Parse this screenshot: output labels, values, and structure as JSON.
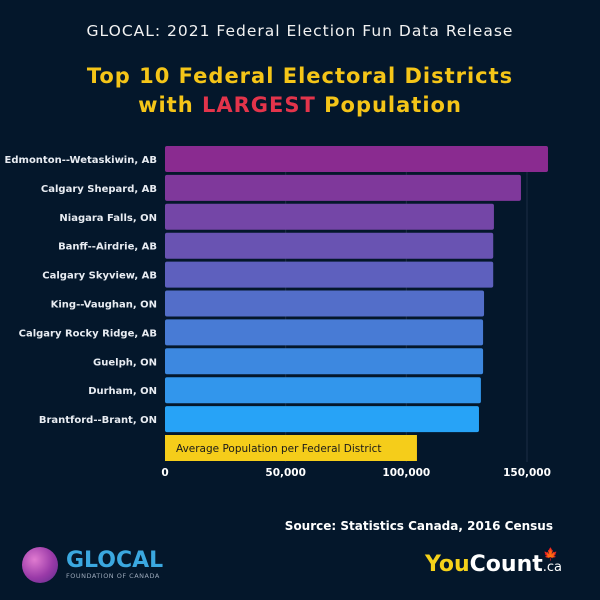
{
  "header": {
    "supertitle": "GLOCAL: 2021 Federal Election Fun Data Release",
    "title_line1": "Top 10 Federal Electoral Districts",
    "title_line2_pre": "with ",
    "title_line2_highlight": "LARGEST",
    "title_line2_post": " Population"
  },
  "chart_data": {
    "type": "bar",
    "orientation": "horizontal",
    "categories": [
      "Edmonton--Wetaskiwin, AB",
      "Calgary Shepard, AB",
      "Niagara Falls, ON",
      "Banff--Airdrie, AB",
      "Calgary Skyview, AB",
      "King--Vaughan, ON",
      "Calgary Rocky Ridge, AB",
      "Guelph, ON",
      "Durham, ON",
      "Brantford--Brant, ON"
    ],
    "values": [
      158700,
      147500,
      136300,
      136000,
      136000,
      132200,
      131800,
      131800,
      130900,
      130100
    ],
    "reference_bar": {
      "label": "Average Population per Federal District",
      "value": 104400,
      "color": "#f5cd1a"
    },
    "xlim": [
      0,
      160000
    ],
    "xticks": [
      0,
      50000,
      100000,
      150000
    ],
    "xtick_labels": [
      "0",
      "50,000",
      "100,000",
      "150,000"
    ],
    "grid": true,
    "colors": {
      "top": "#8a2b90",
      "bottom": "#27a3f7"
    }
  },
  "footer": {
    "source": "Source: Statistics Canada, 2016 Census",
    "glocal_name": "GLOCAL",
    "glocal_sub": "FOUNDATION OF CANADA",
    "yc_you": "You",
    "yc_count": "Count",
    "yc_ca": ".ca"
  }
}
